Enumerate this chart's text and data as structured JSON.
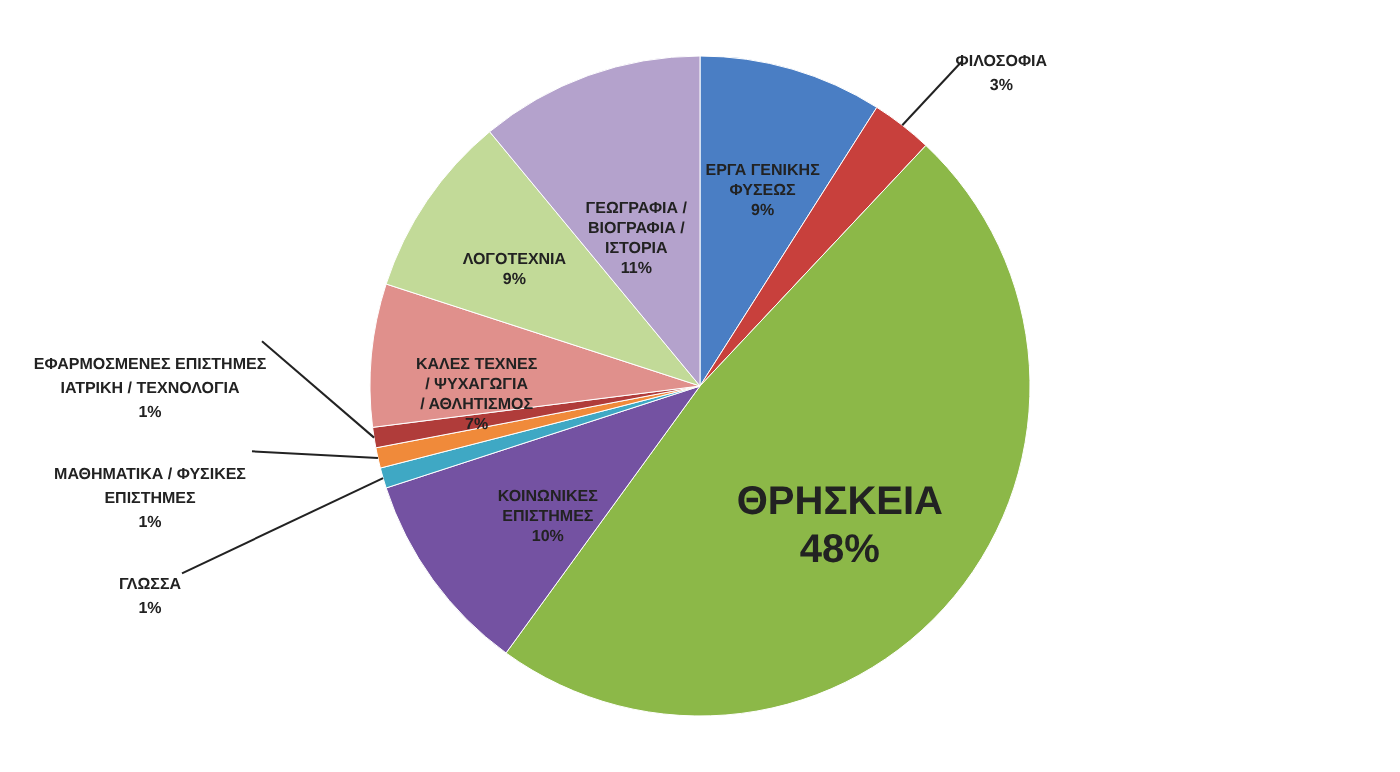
{
  "chart_data": {
    "type": "pie",
    "categories": [
      "ΕΡΓΑ ΓΕΝΙΚΗΣ ΦΥΣΕΩΣ",
      "ΦΙΛΟΣΟΦΙΑ",
      "ΘΡΗΣΚΕΙΑ",
      "ΚΟΙΝΩΝΙΚΕΣ ΕΠΙΣΤΗΜΕΣ",
      "ΓΛΩΣΣΑ",
      "ΜΑΘΗΜΑΤΙΚΑ / ΦΥΣΙΚΕΣ ΕΠΙΣΤΗΜΕΣ",
      "ΕΦΑΡΜΟΣΜΕΝΕΣ ΕΠΙΣΤΗΜΕΣ ΙΑΤΡΙΚΗ / ΤΕΧΝΟΛΟΓΙΑ",
      "ΚΑΛΕΣ ΤΕΧΝΕΣ / ΨΥΧΑΓΩΓΙΑ / ΑΘΛΗΤΙΣΜΟΣ",
      "ΛΟΓΟΤΕΧΝΙΑ",
      "ΓΕΩΓΡΑΦΙΑ / ΒΙΟΓΡΑΦΙΑ / ΙΣΤΟΡΙΑ"
    ],
    "values": [
      9,
      3,
      48,
      10,
      1,
      1,
      1,
      7,
      9,
      11
    ],
    "colors": [
      "#4a7ec4",
      "#c8403c",
      "#8cb848",
      "#7452a2",
      "#3fa8c4",
      "#f08a3a",
      "#b03c3a",
      "#e0908c",
      "#c2da98",
      "#b4a2cc"
    ],
    "value_labels": [
      "9%",
      "3%",
      "48%",
      "10%",
      "1%",
      "1%",
      "1%",
      "7%",
      "9%",
      "11%"
    ]
  }
}
